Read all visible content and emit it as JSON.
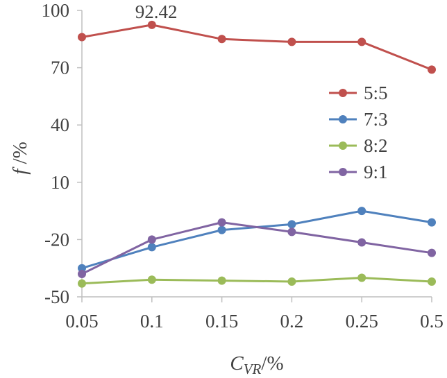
{
  "chart_data": {
    "type": "line",
    "categories": [
      "0.05",
      "0.1",
      "0.15",
      "0.2",
      "0.25",
      "0.5"
    ],
    "series": [
      {
        "name": "5:5",
        "color": "#c0504d",
        "values": [
          86,
          92.42,
          85,
          83.5,
          83.5,
          69
        ]
      },
      {
        "name": "7:3",
        "color": "#4f81bd",
        "values": [
          -35,
          -24,
          -15,
          -12,
          -5,
          -11
        ]
      },
      {
        "name": "8:2",
        "color": "#9bbb59",
        "values": [
          -43,
          -41,
          -41.5,
          -42,
          -40,
          -42
        ]
      },
      {
        "name": "9:1",
        "color": "#8064a2",
        "values": [
          -38,
          -20,
          -11,
          -16,
          -21.5,
          -27
        ]
      }
    ],
    "ylim": [
      -50,
      100
    ],
    "yticks": [
      "100",
      "70",
      "40",
      "10",
      "-20",
      "-50"
    ],
    "xlabel": {
      "main": "C",
      "sub": "VR",
      "unit": "/%"
    },
    "ylabel": {
      "main": "f",
      "unit": " /%"
    },
    "annotations": [
      {
        "text": "92.42",
        "series": "5:5",
        "category": "0.1"
      }
    ],
    "legend_position": "right"
  }
}
